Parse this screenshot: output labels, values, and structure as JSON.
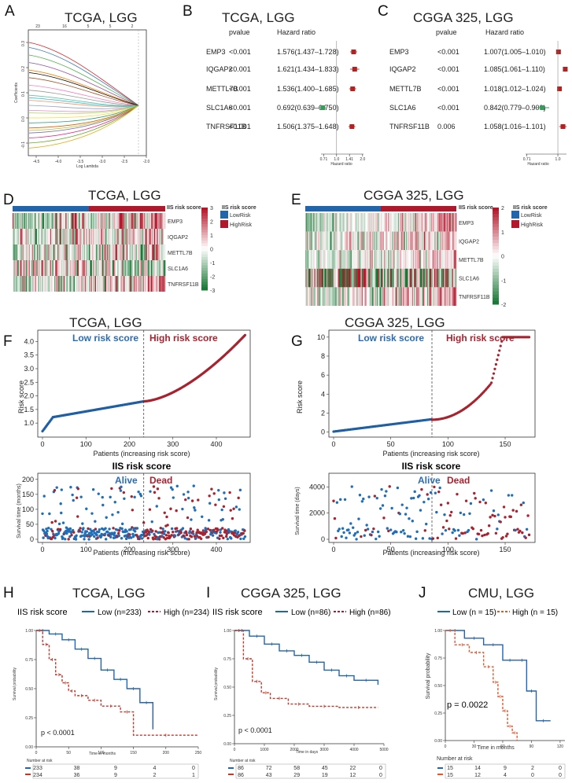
{
  "panels": {
    "A": {
      "label": "A",
      "title": "TCGA, LGG",
      "xlabel": "Log Lambda",
      "ylabel": "Coefficients",
      "top_ticks": [
        "23",
        "16",
        "5",
        "5",
        "2"
      ],
      "x_ticks": [
        "-4.5",
        "-4.0",
        "-3.5",
        "-3.0",
        "-2.5",
        "-2.0"
      ],
      "y_ticks": [
        "0.3",
        "0.2",
        "0.1",
        "0.0",
        "-0.1"
      ]
    },
    "B": {
      "label": "B",
      "title": "TCGA, LGG",
      "col_p": "pvalue",
      "col_hr": "Hazard ratio",
      "axis_label": "Hazard ratio",
      "axis_ticks": [
        "0.71",
        "1.0",
        "1.41",
        "2.0"
      ],
      "rows": [
        {
          "gene": "EMP3",
          "p": "<0.001",
          "hr_text": "1.576(1.437–1.728)",
          "hr": 1.576,
          "lo": 1.437,
          "hi": 1.728
        },
        {
          "gene": "IQGAP2",
          "p": "<0.001",
          "hr_text": "1.621(1.434–1.833)",
          "hr": 1.621,
          "lo": 1.434,
          "hi": 1.833
        },
        {
          "gene": "METTL7B",
          "p": "<0.001",
          "hr_text": "1.536(1.400–1.685)",
          "hr": 1.536,
          "lo": 1.4,
          "hi": 1.685
        },
        {
          "gene": "SLC1A6",
          "p": "<0.001",
          "hr_text": "0.692(0.639–0.750)",
          "hr": 0.692,
          "lo": 0.639,
          "hi": 0.75
        },
        {
          "gene": "TNFRSF11B",
          "p": "<0.001",
          "hr_text": "1.506(1.375–1.648)",
          "hr": 1.506,
          "lo": 1.375,
          "hi": 1.648
        }
      ]
    },
    "C": {
      "label": "C",
      "title": "CGGA 325, LGG",
      "col_p": "pvalue",
      "col_hr": "Hazard ratio",
      "axis_label": "Hazard ratio",
      "axis_ticks": [
        "0.71",
        "1.0"
      ],
      "rows": [
        {
          "gene": "EMP3",
          "p": "<0.001",
          "hr_text": "1.007(1.005–1.010)",
          "hr": 1.007,
          "lo": 1.005,
          "hi": 1.01
        },
        {
          "gene": "IQGAP2",
          "p": "<0.001",
          "hr_text": "1.085(1.061–1.110)",
          "hr": 1.085,
          "lo": 1.061,
          "hi": 1.11
        },
        {
          "gene": "METTL7B",
          "p": "<0.001",
          "hr_text": "1.018(1.012–1.024)",
          "hr": 1.018,
          "lo": 1.012,
          "hi": 1.024
        },
        {
          "gene": "SLC1A6",
          "p": "<0.001",
          "hr_text": "0.842(0.779–0.909)",
          "hr": 0.842,
          "lo": 0.779,
          "hi": 0.909
        },
        {
          "gene": "TNFRSF11B",
          "p": "0.006",
          "hr_text": "1.058(1.016–1.101)",
          "hr": 1.058,
          "lo": 1.016,
          "hi": 1.101
        }
      ]
    },
    "D": {
      "label": "D",
      "title": "TCGA, LGG",
      "genes": [
        "EMP3",
        "IQGAP2",
        "METTL7B",
        "SLC1A6",
        "TNFRSF11B"
      ],
      "legend_title": "IIS risk score",
      "bar_title": "IIS risk score",
      "scale_ticks": [
        "3",
        "2",
        "1",
        "0",
        "-1",
        "-2",
        "-3"
      ],
      "legend": [
        "LowRisk",
        "HighRisk"
      ]
    },
    "E": {
      "label": "E",
      "title": "CGGA 325, LGG",
      "genes": [
        "EMP3",
        "IQGAP2",
        "METTL7B",
        "SLC1A6",
        "TNFRSF11B"
      ],
      "legend_title": "IIS risk score",
      "bar_title": "IIS risk score",
      "scale_ticks": [
        "2",
        "1",
        "0",
        "-1",
        "-2"
      ],
      "legend": [
        "LowRisk",
        "HighRisk"
      ]
    },
    "F": {
      "label": "F",
      "title": "TCGA, LGG",
      "low_text": "Low risk score",
      "high_text": "High risk score",
      "xlabel": "Patients (increasing risk score)",
      "ylabel": "Risk score",
      "mid_title": "IIS risk score",
      "y_ticks": [
        "1.0",
        "1.5",
        "2.0",
        "2.5",
        "3.0",
        "3.5",
        "4.0"
      ],
      "x_ticks": [
        "0",
        "100",
        "200",
        "300",
        "400"
      ],
      "ylabel2": "Survival time (months)",
      "alive": "Alive",
      "dead": "Dead",
      "y2_ticks": [
        "0",
        "50",
        "100",
        "150",
        "200"
      ],
      "xlabel2": "Patients (increasing risk score)"
    },
    "G": {
      "label": "G",
      "title": "CGGA 325, LGG",
      "low_text": "Low risk score",
      "high_text": "High risk score",
      "xlabel": "Patients (increasing risk score)",
      "ylabel": "Risk score",
      "mid_title": "IIS risk score",
      "y_ticks": [
        "0",
        "2",
        "4",
        "6",
        "8",
        "10"
      ],
      "x_ticks": [
        "0",
        "50",
        "100",
        "150"
      ],
      "ylabel2": "Survival time (days)",
      "alive": "Alive",
      "dead": "Dead",
      "y2_ticks": [
        "0",
        "2000",
        "4000"
      ],
      "xlabel2": "Patients (increasing risk score)"
    },
    "H": {
      "label": "H",
      "title": "TCGA, LGG",
      "legend_title": "IIS risk score",
      "low": "Low (n=233)",
      "high": "High (n=234)",
      "ylabel": "Survival probability",
      "xlabel": "Time in months",
      "pval": "p < 0.0001",
      "y_ticks": [
        "1.00",
        "0.75",
        "0.50",
        "0.25",
        "0.00"
      ],
      "x_ticks": [
        "0",
        "50",
        "100",
        "150",
        "200",
        "250"
      ],
      "nar_title": "Number at risk",
      "nar_low": [
        "233",
        "38",
        "9",
        "4",
        "0"
      ],
      "nar_high": [
        "234",
        "36",
        "9",
        "2",
        "1"
      ]
    },
    "I": {
      "label": "I",
      "title": "CGGA 325, LGG",
      "legend_title": "IIS risk score",
      "low": "Low (n=86)",
      "high": "High (n=86)",
      "ylabel": "Survival probability",
      "xlabel": "Time in days",
      "pval": "p < 0.0001",
      "y_ticks": [
        "1.00",
        "0.75",
        "0.50",
        "0.25",
        "0.00"
      ],
      "x_ticks": [
        "0",
        "1000",
        "2000",
        "3000",
        "4000",
        "5000"
      ],
      "nar_title": "Number at risk",
      "nar_low": [
        "86",
        "72",
        "58",
        "45",
        "22",
        "0"
      ],
      "nar_high": [
        "86",
        "43",
        "29",
        "19",
        "12",
        "0"
      ]
    },
    "J": {
      "label": "J",
      "title": "CMU, LGG",
      "low": "Low (n = 15)",
      "high": "High (n = 15)",
      "ylabel": "Survival probability",
      "xlabel": "Time in months",
      "pval": "p = 0.0022",
      "y_ticks": [
        "1.00",
        "0.75",
        "0.50",
        "0.25",
        "0.00"
      ],
      "x_ticks": [
        "0",
        "30",
        "60",
        "90",
        "120"
      ],
      "nar_title": "Number at risk",
      "nar_low": [
        "15",
        "14",
        "9",
        "2",
        "0"
      ],
      "nar_high": [
        "15",
        "12",
        "4",
        "0",
        "0"
      ]
    }
  },
  "colors": {
    "low": "#2166ac",
    "high": "#b2182b",
    "red": "#c0392b",
    "green": "#3a9a5b",
    "blue": "#2b6cb0"
  },
  "chart_data": [
    {
      "type": "line",
      "panel": "A",
      "title": "TCGA, LGG",
      "xlabel": "Log Lambda",
      "ylabel": "Coefficients",
      "xlim": [
        -4.8,
        -1.8
      ],
      "ylim": [
        -0.15,
        0.35
      ]
    },
    {
      "type": "scatter",
      "panel": "B",
      "title": "TCGA, LGG",
      "categories": [
        "EMP3",
        "IQGAP2",
        "METTL7B",
        "SLC1A6",
        "TNFRSF11B"
      ],
      "values": [
        1.576,
        1.621,
        1.536,
        0.692,
        1.506
      ],
      "xlabel": "Hazard ratio"
    },
    {
      "type": "scatter",
      "panel": "C",
      "title": "CGGA 325, LGG",
      "categories": [
        "EMP3",
        "IQGAP2",
        "METTL7B",
        "SLC1A6",
        "TNFRSF11B"
      ],
      "values": [
        1.007,
        1.085,
        1.018,
        0.842,
        1.058
      ],
      "xlabel": "Hazard ratio"
    },
    {
      "type": "heatmap",
      "panel": "D",
      "title": "TCGA, LGG",
      "rows": [
        "EMP3",
        "IQGAP2",
        "METTL7B",
        "SLC1A6",
        "TNFRSF11B"
      ],
      "range": [
        -3,
        3
      ]
    },
    {
      "type": "heatmap",
      "panel": "E",
      "title": "CGGA 325, LGG",
      "rows": [
        "EMP3",
        "IQGAP2",
        "METTL7B",
        "SLC1A6",
        "TNFRSF11B"
      ],
      "range": [
        -2,
        2
      ]
    },
    {
      "type": "line",
      "panel": "F",
      "title": "TCGA, LGG",
      "xlabel": "Patients (increasing risk score)",
      "ylabel": "Risk score",
      "n": 467,
      "cutoff": 233,
      "ylim": [
        0.6,
        4.3
      ]
    },
    {
      "type": "line",
      "panel": "G",
      "title": "CGGA 325, LGG",
      "xlabel": "Patients (increasing risk score)",
      "ylabel": "Risk score",
      "n": 172,
      "cutoff": 86,
      "ylim": [
        0,
        10
      ]
    },
    {
      "type": "line",
      "panel": "H",
      "title": "TCGA, LGG",
      "xlabel": "Time in months",
      "ylabel": "Survival probability",
      "series": [
        {
          "name": "Low (n=233)",
          "x": [
            0,
            20,
            40,
            60,
            80,
            100,
            120,
            140,
            160,
            180
          ],
          "values": [
            1,
            0.97,
            0.92,
            0.84,
            0.76,
            0.66,
            0.58,
            0.5,
            0.38,
            0.15
          ]
        },
        {
          "name": "High (n=234)",
          "x": [
            0,
            10,
            20,
            30,
            40,
            50,
            60,
            80,
            100,
            130,
            150,
            250
          ],
          "values": [
            1,
            0.88,
            0.75,
            0.62,
            0.55,
            0.48,
            0.44,
            0.4,
            0.35,
            0.3,
            0.1,
            0.1
          ]
        }
      ]
    },
    {
      "type": "line",
      "panel": "I",
      "title": "CGGA 325, LGG",
      "xlabel": "Time in days",
      "ylabel": "Survival probability",
      "series": [
        {
          "name": "Low (n=86)",
          "x": [
            0,
            500,
            1000,
            1500,
            2000,
            2500,
            3000,
            3500,
            4000,
            4800
          ],
          "values": [
            1,
            0.95,
            0.88,
            0.82,
            0.78,
            0.72,
            0.65,
            0.6,
            0.56,
            0.52
          ]
        },
        {
          "name": "High (n=86)",
          "x": [
            0,
            300,
            600,
            900,
            1200,
            1800,
            2500,
            3500,
            4800
          ],
          "values": [
            1,
            0.75,
            0.55,
            0.45,
            0.4,
            0.35,
            0.33,
            0.32,
            0.32
          ]
        }
      ]
    },
    {
      "type": "line",
      "panel": "J",
      "title": "CMU, LGG",
      "xlabel": "Time in months",
      "ylabel": "Survival probability",
      "series": [
        {
          "name": "Low (n = 15)",
          "x": [
            0,
            20,
            40,
            60,
            75,
            85,
            95,
            110
          ],
          "values": [
            1,
            0.93,
            0.87,
            0.73,
            0.73,
            0.45,
            0.18,
            0.18
          ]
        },
        {
          "name": "High (n = 15)",
          "x": [
            0,
            10,
            25,
            40,
            50,
            55,
            60,
            65,
            70,
            75
          ],
          "values": [
            1,
            0.87,
            0.8,
            0.67,
            0.53,
            0.4,
            0.27,
            0.13,
            0.07,
            0.0
          ]
        }
      ]
    }
  ]
}
